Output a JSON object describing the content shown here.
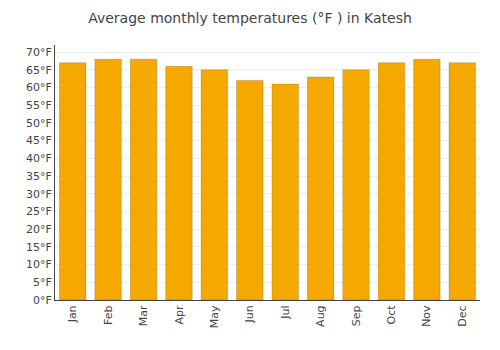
{
  "chart_data": {
    "type": "bar",
    "title": "Average monthly temperatures (°F ) in Katesh",
    "categories": [
      "Jan",
      "Feb",
      "Mar",
      "Apr",
      "May",
      "Jun",
      "Jul",
      "Aug",
      "Sep",
      "Oct",
      "Nov",
      "Dec"
    ],
    "values": [
      67,
      68,
      68,
      66,
      65,
      62,
      61,
      63,
      65,
      67,
      68,
      67
    ],
    "color": "#F5A800",
    "ylim": [
      0,
      72
    ],
    "yticks": [
      {
        "value": 0,
        "label": "0°F"
      },
      {
        "value": 5,
        "label": "5°F"
      },
      {
        "value": 10,
        "label": "10°F"
      },
      {
        "value": 15,
        "label": "15°F"
      },
      {
        "value": 20,
        "label": "20°F"
      },
      {
        "value": 25,
        "label": "25°F"
      },
      {
        "value": 30,
        "label": "30°F"
      },
      {
        "value": 35,
        "label": "35°F"
      },
      {
        "value": 40,
        "label": "40°F"
      },
      {
        "value": 45,
        "label": "45°F"
      },
      {
        "value": 50,
        "label": "50°F"
      },
      {
        "value": 55,
        "label": "55°F"
      },
      {
        "value": 60,
        "label": "60°F"
      },
      {
        "value": 65,
        "label": "65°F"
      },
      {
        "value": 70,
        "label": "70°F"
      }
    ],
    "grid": true
  }
}
